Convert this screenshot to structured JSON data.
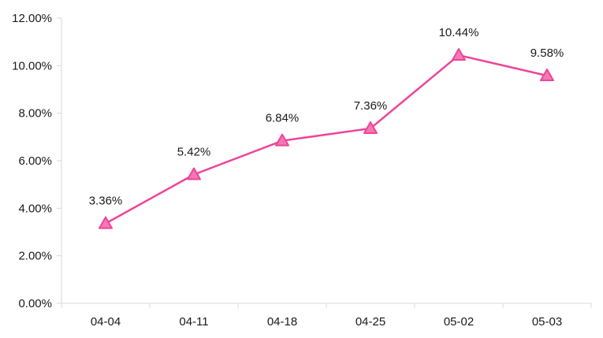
{
  "chart_data": {
    "type": "line",
    "categories": [
      "04-04",
      "04-11",
      "04-18",
      "04-25",
      "05-02",
      "05-03"
    ],
    "series": [
      {
        "values": [
          3.36,
          5.42,
          6.84,
          7.36,
          10.44,
          9.58
        ],
        "value_labels": [
          "3.36%",
          "5.42%",
          "6.84%",
          "7.36%",
          "10.44%",
          "9.58%"
        ],
        "color": "#ee4499",
        "marker": "triangle",
        "marker_fill": "#f478b4"
      }
    ],
    "ylim": [
      0,
      12
    ],
    "yticks": [
      "0.00%",
      "2.00%",
      "4.00%",
      "6.00%",
      "8.00%",
      "10.00%",
      "12.00%"
    ],
    "ytick_values": [
      0,
      2,
      4,
      6,
      8,
      10,
      12
    ],
    "grid": false,
    "legend": "none",
    "title": "",
    "xlabel": "",
    "ylabel": ""
  }
}
